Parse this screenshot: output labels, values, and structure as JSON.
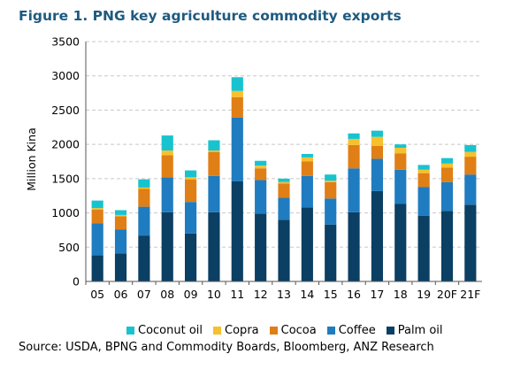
{
  "title": "Figure 1. PNG key agriculture commodity exports",
  "source": "Source: USDA, BPNG and Commodity Boards, Bloomberg, ANZ Research",
  "colors": {
    "palm_oil": "#0b3f63",
    "coffee": "#1f7cc0",
    "cocoa": "#e07f16",
    "copra": "#f6c12c",
    "coconut_oil": "#18c3cf",
    "grid": "#c8c8c8"
  },
  "chart_data": {
    "type": "bar",
    "stacked": true,
    "ylabel": "Million Kina",
    "xlabel": "",
    "ylim": [
      0,
      3500
    ],
    "yticks": [
      0,
      500,
      1000,
      1500,
      2000,
      2500,
      3000,
      3500
    ],
    "grid": true,
    "legend_position": "bottom",
    "categories": [
      "05",
      "06",
      "07",
      "08",
      "09",
      "10",
      "11",
      "12",
      "13",
      "14",
      "15",
      "16",
      "17",
      "18",
      "19",
      "20F",
      "21F"
    ],
    "series": [
      {
        "name": "Palm oil",
        "color_key": "palm_oil",
        "values": [
          380,
          410,
          670,
          1010,
          700,
          1010,
          1460,
          990,
          900,
          1080,
          830,
          1010,
          1320,
          1130,
          960,
          1030,
          1120
        ]
      },
      {
        "name": "Coffee",
        "color_key": "coffee",
        "values": [
          470,
          350,
          420,
          510,
          460,
          530,
          930,
          490,
          320,
          460,
          380,
          640,
          470,
          500,
          420,
          420,
          440
        ]
      },
      {
        "name": "Cocoa",
        "color_key": "cocoa",
        "values": [
          200,
          190,
          260,
          320,
          330,
          350,
          300,
          170,
          210,
          210,
          240,
          340,
          190,
          240,
          200,
          210,
          260
        ]
      },
      {
        "name": "Copra",
        "color_key": "copra",
        "values": [
          20,
          20,
          20,
          70,
          30,
          20,
          90,
          40,
          20,
          60,
          20,
          90,
          130,
          80,
          50,
          60,
          70
        ]
      },
      {
        "name": "Coconut oil",
        "color_key": "coconut_oil",
        "values": [
          110,
          70,
          120,
          220,
          100,
          150,
          200,
          70,
          50,
          50,
          90,
          80,
          90,
          50,
          70,
          80,
          100
        ]
      }
    ]
  },
  "legend_order": [
    "Coconut oil",
    "Copra",
    "Cocoa",
    "Coffee",
    "Palm oil"
  ]
}
